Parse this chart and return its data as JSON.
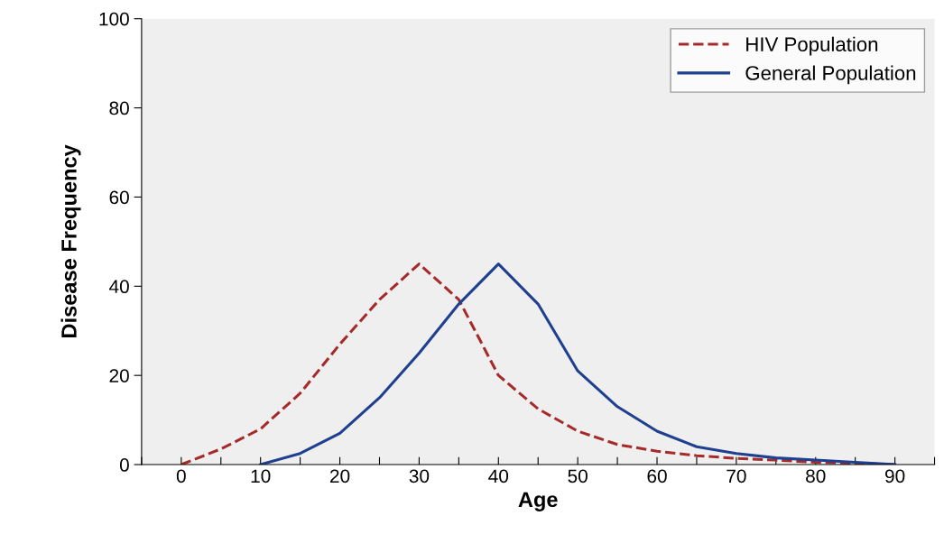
{
  "chart_data": {
    "type": "line",
    "xlabel": "Age",
    "ylabel": "Disease Frequency",
    "x": [
      0,
      5,
      10,
      15,
      20,
      25,
      30,
      35,
      40,
      45,
      50,
      55,
      60,
      65,
      70,
      75,
      80,
      85,
      90
    ],
    "series": [
      {
        "name": "HIV Population",
        "color": "#a52a2a",
        "line_style": "dashed",
        "values": [
          0,
          3.5,
          8,
          16,
          27,
          37,
          45,
          37,
          20,
          12.5,
          7.5,
          4.5,
          3,
          2,
          1.4,
          1,
          0.5,
          0.3,
          0
        ]
      },
      {
        "name": "General Population",
        "color": "#1f3f8f",
        "line_style": "solid",
        "x": [
          10,
          15,
          20,
          25,
          30,
          35,
          40,
          45,
          50,
          55,
          60,
          65,
          70,
          75,
          80,
          85,
          90
        ],
        "values": [
          0,
          2.5,
          7,
          15,
          25,
          36,
          45,
          36,
          21,
          13,
          7.5,
          4,
          2.5,
          1.5,
          1,
          0.5,
          0
        ]
      }
    ],
    "xlim": [
      -5,
      95
    ],
    "xticks": [
      {
        "value": -5,
        "label": null
      },
      0,
      {
        "value": 5,
        "label": null
      },
      10,
      {
        "value": 15,
        "label": null
      },
      20,
      {
        "value": 25,
        "label": null
      },
      30,
      {
        "value": 35,
        "label": null
      },
      40,
      {
        "value": 45,
        "label": null
      },
      50,
      {
        "value": 55,
        "label": null
      },
      60,
      {
        "value": 65,
        "label": null
      },
      70,
      {
        "value": 75,
        "label": null
      },
      80,
      {
        "value": 85,
        "label": null
      },
      90,
      {
        "value": 95,
        "label": null
      }
    ],
    "ylim": [
      0,
      100
    ],
    "yticks": [
      0,
      20,
      40,
      60,
      80,
      100
    ],
    "grid": false,
    "legend": "top right",
    "marker": "none"
  }
}
